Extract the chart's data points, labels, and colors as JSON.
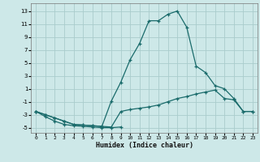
{
  "xlabel": "Humidex (Indice chaleur)",
  "bg_color": "#cde8e8",
  "grid_color": "#aacccc",
  "line_color": "#1a6b6b",
  "xlim": [
    -0.5,
    23.5
  ],
  "ylim": [
    -5.8,
    14.2
  ],
  "xticks": [
    0,
    1,
    2,
    3,
    4,
    5,
    6,
    7,
    8,
    9,
    10,
    11,
    12,
    13,
    14,
    15,
    16,
    17,
    18,
    19,
    20,
    21,
    22,
    23
  ],
  "yticks": [
    -5,
    -3,
    -1,
    1,
    3,
    5,
    7,
    9,
    11,
    13
  ],
  "line1_x": [
    0,
    1,
    2,
    3,
    4,
    5,
    6,
    7,
    8,
    9
  ],
  "line1_y": [
    -2.5,
    -3.3,
    -4.0,
    -4.5,
    -4.7,
    -4.8,
    -4.9,
    -5.0,
    -5.0,
    -4.9
  ],
  "line2_x": [
    0,
    1,
    2,
    3,
    4,
    5,
    6,
    7,
    8,
    9,
    10,
    11,
    12,
    13,
    14,
    15,
    16,
    17,
    18,
    19,
    20,
    21,
    22,
    23
  ],
  "line2_y": [
    -2.5,
    -3.0,
    -3.5,
    -4.0,
    -4.5,
    -4.6,
    -4.7,
    -4.8,
    -4.9,
    -2.5,
    -2.2,
    -2.0,
    -1.8,
    -1.5,
    -1.0,
    -0.5,
    -0.2,
    0.2,
    0.5,
    0.8,
    -0.5,
    -0.7,
    -2.5,
    -2.5
  ],
  "line3_x": [
    0,
    1,
    2,
    3,
    4,
    5,
    6,
    7,
    8,
    9,
    10,
    11,
    12,
    13,
    14,
    15,
    16,
    17,
    18,
    19,
    20,
    21,
    22,
    23
  ],
  "line3_y": [
    -2.5,
    -3.0,
    -3.5,
    -4.0,
    -4.5,
    -4.6,
    -4.7,
    -4.8,
    -0.9,
    2.0,
    5.5,
    8.0,
    11.5,
    11.5,
    12.5,
    13.0,
    10.5,
    4.5,
    3.5,
    1.5,
    1.0,
    -0.5,
    -2.5,
    -2.5
  ]
}
